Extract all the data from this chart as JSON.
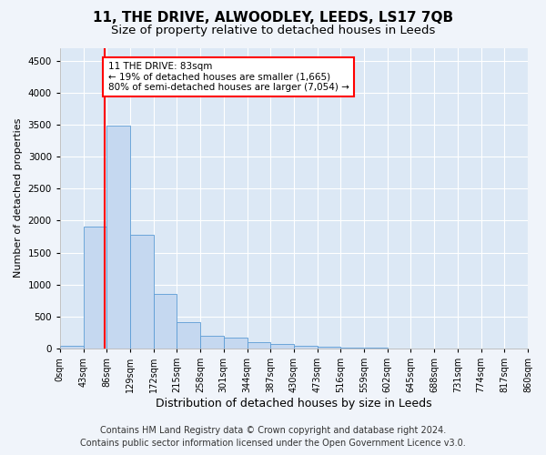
{
  "title": "11, THE DRIVE, ALWOODLEY, LEEDS, LS17 7QB",
  "subtitle": "Size of property relative to detached houses in Leeds",
  "xlabel": "Distribution of detached houses by size in Leeds",
  "ylabel": "Number of detached properties",
  "bar_values": [
    50,
    1900,
    3480,
    1780,
    850,
    420,
    200,
    175,
    100,
    70,
    45,
    28,
    18,
    10,
    5,
    3,
    2,
    1,
    1
  ],
  "bin_labels": [
    "0sqm",
    "43sqm",
    "86sqm",
    "129sqm",
    "172sqm",
    "215sqm",
    "258sqm",
    "301sqm",
    "344sqm",
    "387sqm",
    "430sqm",
    "473sqm",
    "516sqm",
    "559sqm",
    "602sqm",
    "645sqm",
    "688sqm",
    "731sqm",
    "774sqm",
    "817sqm",
    "860sqm"
  ],
  "bar_color": "#c5d8f0",
  "bar_edgecolor": "#5b9bd5",
  "vline_x": 1.93,
  "vline_color": "red",
  "annotation_text": "11 THE DRIVE: 83sqm\n← 19% of detached houses are smaller (1,665)\n80% of semi-detached houses are larger (7,054) →",
  "annotation_box_color": "white",
  "annotation_box_edgecolor": "red",
  "ylim": [
    0,
    4700
  ],
  "yticks": [
    0,
    500,
    1000,
    1500,
    2000,
    2500,
    3000,
    3500,
    4000,
    4500
  ],
  "footer_line1": "Contains HM Land Registry data © Crown copyright and database right 2024.",
  "footer_line2": "Contains public sector information licensed under the Open Government Licence v3.0.",
  "background_color": "#f0f4fa",
  "plot_background_color": "#dce8f5",
  "grid_color": "white",
  "title_fontsize": 11,
  "subtitle_fontsize": 9.5,
  "xlabel_fontsize": 9,
  "ylabel_fontsize": 8,
  "footer_fontsize": 7,
  "tick_fontsize": 7.5,
  "annotation_fontsize": 7.5
}
